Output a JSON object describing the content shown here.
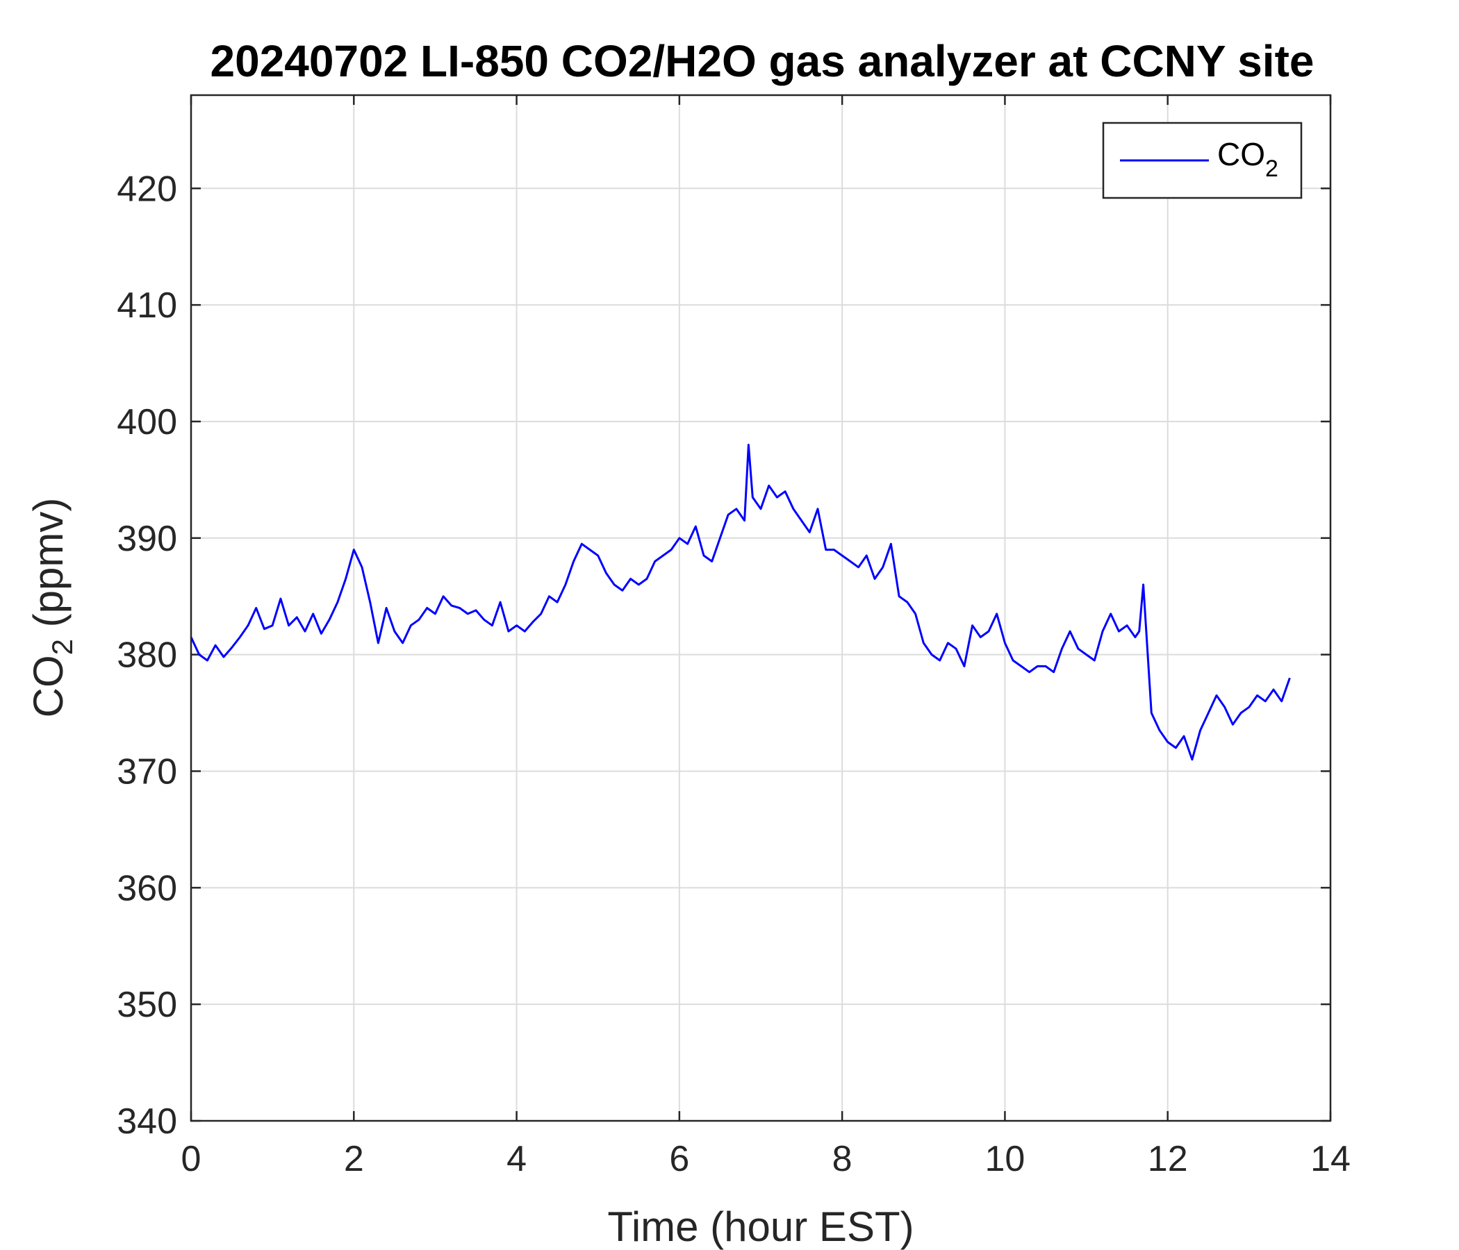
{
  "chart_data": {
    "type": "line",
    "title": "20240702 LI-850 CO2/H2O gas analyzer at CCNY site",
    "xlabel": "Time (hour EST)",
    "ylabel": {
      "base": "CO",
      "subscript": "2",
      "rest": " (ppmv)"
    },
    "xlim": [
      0,
      14
    ],
    "ylim": [
      340,
      428
    ],
    "xticks": [
      0,
      2,
      4,
      6,
      8,
      10,
      12,
      14
    ],
    "yticks": [
      340,
      350,
      360,
      370,
      380,
      390,
      400,
      410,
      420
    ],
    "grid": true,
    "legend_position": "top-right",
    "series": [
      {
        "name": {
          "base": "CO",
          "subscript": "2"
        },
        "color": "#0000ff",
        "x": [
          0,
          0.1,
          0.2,
          0.3,
          0.4,
          0.5,
          0.6,
          0.7,
          0.8,
          0.9,
          1.0,
          1.1,
          1.2,
          1.3,
          1.4,
          1.5,
          1.6,
          1.7,
          1.8,
          1.9,
          2.0,
          2.1,
          2.2,
          2.3,
          2.4,
          2.5,
          2.6,
          2.7,
          2.8,
          2.9,
          3.0,
          3.1,
          3.2,
          3.3,
          3.4,
          3.5,
          3.6,
          3.7,
          3.8,
          3.9,
          4.0,
          4.1,
          4.2,
          4.3,
          4.4,
          4.5,
          4.6,
          4.7,
          4.8,
          4.9,
          5.0,
          5.1,
          5.2,
          5.3,
          5.4,
          5.5,
          5.6,
          5.7,
          5.8,
          5.9,
          6.0,
          6.1,
          6.2,
          6.3,
          6.4,
          6.5,
          6.6,
          6.7,
          6.8,
          6.85,
          6.9,
          7.0,
          7.1,
          7.2,
          7.3,
          7.4,
          7.5,
          7.6,
          7.7,
          7.8,
          7.9,
          8.0,
          8.1,
          8.2,
          8.3,
          8.4,
          8.5,
          8.6,
          8.7,
          8.8,
          8.9,
          9.0,
          9.1,
          9.2,
          9.3,
          9.4,
          9.5,
          9.6,
          9.7,
          9.8,
          9.9,
          10.0,
          10.1,
          10.2,
          10.3,
          10.4,
          10.5,
          10.6,
          10.7,
          10.8,
          10.9,
          11.0,
          11.1,
          11.2,
          11.3,
          11.4,
          11.5,
          11.6,
          11.65,
          11.7,
          11.8,
          11.9,
          12.0,
          12.1,
          12.2,
          12.3,
          12.4,
          12.5,
          12.6,
          12.7,
          12.8,
          12.9,
          13.0,
          13.1,
          13.2,
          13.3,
          13.4,
          13.5
        ],
        "y": [
          381.5,
          380.0,
          379.5,
          380.8,
          379.8,
          380.6,
          381.5,
          382.5,
          384.0,
          382.2,
          382.5,
          384.8,
          382.5,
          383.2,
          382.0,
          383.5,
          381.8,
          383.0,
          384.5,
          386.5,
          389.0,
          387.5,
          384.5,
          381.0,
          384.0,
          382.0,
          381.0,
          382.5,
          383.0,
          384.0,
          383.5,
          385.0,
          384.2,
          384.0,
          383.5,
          383.8,
          383.0,
          382.5,
          384.5,
          382.0,
          382.5,
          382.0,
          382.8,
          383.5,
          385.0,
          384.5,
          386.0,
          388.0,
          389.5,
          389.0,
          388.5,
          387.0,
          386.0,
          385.5,
          386.5,
          386.0,
          386.5,
          388.0,
          388.5,
          389.0,
          390.0,
          389.5,
          391.0,
          388.5,
          388.0,
          390.0,
          392.0,
          392.5,
          391.5,
          398.0,
          393.5,
          392.5,
          394.5,
          393.5,
          394.0,
          392.5,
          391.5,
          390.5,
          392.5,
          389.0,
          389.0,
          388.5,
          388.0,
          387.5,
          388.5,
          386.5,
          387.5,
          389.5,
          385.0,
          384.5,
          383.5,
          381.0,
          380.0,
          379.5,
          381.0,
          380.5,
          379.0,
          382.5,
          381.5,
          382.0,
          383.5,
          381.0,
          379.5,
          379.0,
          378.5,
          379.0,
          379.0,
          378.5,
          380.5,
          382.0,
          380.5,
          380.0,
          379.5,
          382.0,
          383.5,
          382.0,
          382.5,
          381.5,
          382.0,
          386.0,
          375.0,
          373.5,
          372.5,
          372.0,
          373.0,
          371.0,
          373.5,
          375.0,
          376.5,
          375.5,
          374.0,
          375.0,
          375.5,
          376.5,
          376.0,
          377.0,
          376.0,
          378.0
        ]
      }
    ]
  }
}
